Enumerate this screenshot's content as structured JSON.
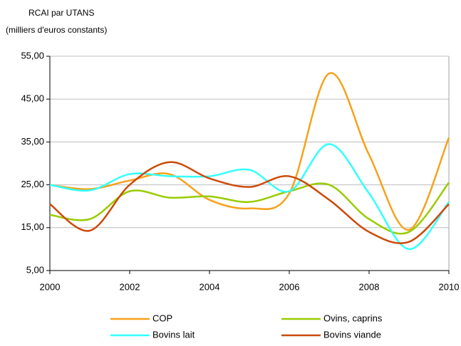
{
  "chart_data": {
    "type": "line",
    "ylabel": [
      "RCAI par UTANS",
      "(milliers d'euros constants)"
    ],
    "x": [
      2000,
      2001,
      2002,
      2003,
      2004,
      2005,
      2006,
      2007,
      2008,
      2009,
      2010
    ],
    "xlim": [
      2000,
      2010
    ],
    "xticks": [
      2000,
      2002,
      2004,
      2006,
      2008,
      2010
    ],
    "ylim": [
      5,
      55
    ],
    "yticks": [
      {
        "value": 5,
        "label": "5,00"
      },
      {
        "value": 15,
        "label": "15,00"
      },
      {
        "value": 25,
        "label": "25,00"
      },
      {
        "value": 35,
        "label": "35,00"
      },
      {
        "value": 45,
        "label": "45,00"
      },
      {
        "value": 55,
        "label": "55,00"
      }
    ],
    "grid": true,
    "legend": "bottom",
    "series": [
      {
        "name": "COP",
        "color": "#f7a11a",
        "values": [
          25,
          24,
          26,
          27.5,
          21.5,
          19.5,
          23,
          51,
          32,
          14.5,
          36
        ]
      },
      {
        "name": "Ovins, caprins",
        "color": "#99cc00",
        "values": [
          18,
          17,
          23.5,
          22,
          22.3,
          21,
          23.5,
          25,
          17,
          14,
          25.5
        ]
      },
      {
        "name": "Bovins lait",
        "color": "#33ffff",
        "values": [
          25,
          23.7,
          27.5,
          27,
          27,
          28.5,
          23.5,
          34.5,
          23,
          10,
          21
        ]
      },
      {
        "name": "Bovins viande",
        "color": "#cc4a0a",
        "values": [
          20.5,
          14.3,
          25,
          30.3,
          26.5,
          24.5,
          27,
          21.5,
          14,
          11.7,
          20.5
        ]
      }
    ]
  }
}
